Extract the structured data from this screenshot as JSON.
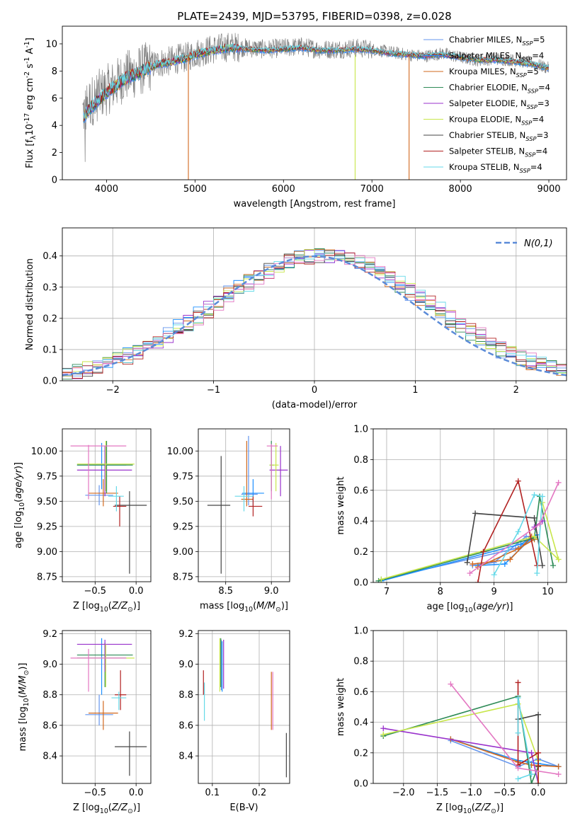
{
  "colors": [
    "#6495ed",
    "#1e90ff",
    "#d2691e",
    "#2e8b57",
    "#9932cc",
    "#c8e64b",
    "#444444",
    "#b22222",
    "#66d9e8"
  ],
  "legend_labels": [
    "Chabrier MILES, N$_{SSP}$=5",
    "Salpeter MILES, N$_{SSP}$=4",
    "Kroupa MILES, N$_{SSP}$=5",
    "Chabrier ELODIE, N$_{SSP}$=4",
    "Salpeter ELODIE, N$_{SSP}$=3",
    "Kroupa ELODIE, N$_{SSP}$=4",
    "Chabrier STELIB, N$_{SSP}$=3",
    "Salpeter STELIB, N$_{SSP}$=4",
    "Kroupa STELIB, N$_{SSP}$=4"
  ],
  "chart_data": [
    {
      "id": "spectrum",
      "type": "line",
      "title": "PLATE=2439, MJD=53795, FIBERID=0398, z=0.028",
      "xlabel": "wavelength [Angstrom, rest frame]",
      "ylabel": "Flux [f$_\\lambda$10$^{-17}$ erg cm$^{-2}$ s$^{-1}$ A$^{-1}$]",
      "xlim": [
        3500,
        9200
      ],
      "ylim": [
        0,
        11.3
      ],
      "xticks": [
        4000,
        5000,
        6000,
        7000,
        8000,
        9000
      ],
      "yticks": [
        0,
        2,
        4,
        6,
        8,
        10
      ],
      "grid": false,
      "legend_position": "top-right",
      "data_trace": {
        "x": [
          3750,
          3800,
          3900,
          4000,
          4100,
          4200,
          4300,
          4400,
          4500,
          4600,
          4700,
          4800,
          4900,
          5000,
          5200,
          5400,
          5600,
          5800,
          6000,
          6200,
          6400,
          6600,
          6800,
          7000,
          7200,
          7400,
          7600,
          7800,
          8000,
          8200,
          8400,
          8600,
          8800,
          9000
        ],
        "y": [
          5.0,
          5.6,
          6.2,
          6.6,
          7.0,
          7.6,
          7.8,
          8.1,
          8.4,
          8.6,
          8.7,
          8.9,
          9.0,
          9.3,
          9.6,
          9.8,
          9.7,
          9.6,
          9.7,
          9.8,
          9.6,
          9.6,
          9.7,
          9.6,
          9.4,
          9.2,
          9.1,
          9.3,
          9.0,
          8.8,
          8.9,
          8.8,
          8.6,
          8.2
        ]
      },
      "model_trace": {
        "x": [
          3750,
          3800,
          3900,
          4000,
          4100,
          4200,
          4300,
          4400,
          4500,
          4600,
          4700,
          4800,
          4900,
          5000,
          5200,
          5400,
          5600,
          5800,
          6000,
          6200,
          6400,
          6600,
          6800,
          7000,
          7200,
          7400,
          7600,
          7800,
          8000,
          8200,
          8400,
          8600,
          8800,
          9000
        ],
        "y": [
          4.6,
          5.2,
          5.8,
          6.4,
          6.9,
          7.4,
          7.7,
          8.0,
          8.3,
          8.5,
          8.6,
          8.8,
          8.9,
          9.2,
          9.5,
          9.7,
          9.6,
          9.5,
          9.6,
          9.7,
          9.5,
          9.5,
          9.6,
          9.5,
          9.3,
          9.2,
          9.1,
          9.2,
          9.0,
          8.8,
          8.8,
          8.7,
          8.5,
          8.2
        ]
      },
      "masked_dips": [
        {
          "x": 4925,
          "series": 2
        },
        {
          "x": 6810,
          "series": 5
        },
        {
          "x": 7420,
          "series": 2
        }
      ]
    },
    {
      "id": "residuals",
      "type": "histogram",
      "xlabel": "(data-model)/error",
      "ylabel": "Normed distribution",
      "xlim": [
        -2.5,
        2.5
      ],
      "ylim": [
        0,
        0.49
      ],
      "xticks": [
        -2,
        -1,
        0,
        1,
        2
      ],
      "yticks": [
        0.0,
        0.1,
        0.2,
        0.3,
        0.4
      ],
      "grid": true,
      "legend_position": "top-right",
      "reference_label": "$\\mathcal{N}(0,1)$",
      "bin_width": 0.1,
      "center_shift": 0.08,
      "sigma_scale": 1.07
    },
    {
      "id": "age-vs-Z",
      "type": "errorbar",
      "xlabel": "Z [log$_{10}$($Z/Z_\\odot$)]",
      "ylabel": "age  [log$_{10}$($age/yr$)]",
      "xlim": [
        -0.9,
        0.18
      ],
      "ylim": [
        8.7,
        10.22
      ],
      "xticks": [
        -0.5,
        0.0
      ],
      "yticks": [
        8.75,
        9.0,
        9.25,
        9.5,
        9.75,
        10.0
      ],
      "grid": true,
      "points": [
        {
          "x": -0.45,
          "xlo": -0.62,
          "xhi": -0.28,
          "y": 9.56,
          "ylo": 9.46,
          "yhi": 9.66
        },
        {
          "x": -0.42,
          "xlo": -0.72,
          "xhi": -0.12,
          "y": 9.86,
          "ylo": 9.62,
          "yhi": 10.08
        },
        {
          "x": -0.4,
          "xlo": -0.58,
          "xhi": -0.22,
          "y": 9.58,
          "ylo": 9.45,
          "yhi": 9.72
        },
        {
          "x": -0.36,
          "xlo": -0.72,
          "xhi": -0.04,
          "y": 9.86,
          "ylo": 9.58,
          "yhi": 10.1
        },
        {
          "x": -0.38,
          "xlo": -0.72,
          "xhi": -0.05,
          "y": 9.81,
          "ylo": 9.55,
          "yhi": 10.05
        },
        {
          "x": -0.37,
          "xlo": -0.72,
          "xhi": -0.02,
          "y": 9.87,
          "ylo": 9.6,
          "yhi": 10.1
        },
        {
          "x": -0.08,
          "xlo": -0.26,
          "xhi": 0.13,
          "y": 9.46,
          "ylo": 8.78,
          "yhi": 9.6
        },
        {
          "x": -0.2,
          "xlo": -0.28,
          "xhi": -0.12,
          "y": 9.45,
          "ylo": 9.25,
          "yhi": 9.55
        },
        {
          "x": -0.24,
          "xlo": -0.34,
          "xhi": -0.15,
          "y": 9.55,
          "ylo": 9.4,
          "yhi": 9.65
        },
        {
          "x": -0.58,
          "xlo": -0.8,
          "xhi": -0.12,
          "y": 10.05,
          "ylo": 9.52,
          "yhi": 10.06
        }
      ]
    },
    {
      "id": "age-vs-mass",
      "type": "errorbar",
      "xlabel": "mass [log$_{10}$($M/M_\\odot$)]",
      "ylabel": "",
      "xlim": [
        8.2,
        9.2
      ],
      "ylim": [
        8.7,
        10.22
      ],
      "xticks": [
        8.5,
        9.0
      ],
      "yticks": [
        8.75,
        9.0,
        9.25,
        9.5,
        9.75,
        10.0
      ],
      "grid": true,
      "points": [
        {
          "x": 8.75,
          "xlo": 8.67,
          "xhi": 8.85,
          "y": 9.57,
          "ylo": 9.46,
          "yhi": 10.15
        },
        {
          "x": 8.8,
          "xlo": 8.68,
          "xhi": 8.92,
          "y": 9.58,
          "ylo": 9.45,
          "yhi": 9.72
        },
        {
          "x": 8.73,
          "xlo": 8.67,
          "xhi": 8.8,
          "y": 9.52,
          "ylo": 9.45,
          "yhi": 10.1
        },
        {
          "x": 9.0,
          "xlo": 8.98,
          "xhi": 9.03,
          "y": 9.86,
          "ylo": 9.6,
          "yhi": 10.1
        },
        {
          "x": 9.1,
          "xlo": 8.98,
          "xhi": 9.18,
          "y": 9.81,
          "ylo": 9.55,
          "yhi": 10.05
        },
        {
          "x": 9.05,
          "xlo": 8.98,
          "xhi": 9.08,
          "y": 9.86,
          "ylo": 9.6,
          "yhi": 10.08
        },
        {
          "x": 8.45,
          "xlo": 8.3,
          "xhi": 8.55,
          "y": 9.46,
          "ylo": 8.78,
          "yhi": 9.95
        },
        {
          "x": 8.8,
          "xlo": 8.75,
          "xhi": 8.9,
          "y": 9.45,
          "ylo": 9.35,
          "yhi": 9.55
        },
        {
          "x": 8.7,
          "xlo": 8.6,
          "xhi": 8.8,
          "y": 9.55,
          "ylo": 9.4,
          "yhi": 9.65
        },
        {
          "x": 9.0,
          "xlo": 8.95,
          "xhi": 9.07,
          "y": 10.05,
          "ylo": 9.52,
          "yhi": 10.07
        }
      ]
    },
    {
      "id": "mw-vs-age",
      "type": "line",
      "xlabel": "age  [log$_{10}$($age/yr$)]",
      "ylabel": "mass weight",
      "xlim": [
        6.75,
        10.35
      ],
      "ylim": [
        0.0,
        1.0
      ],
      "xticks": [
        7,
        8,
        9,
        10
      ],
      "yticks": [
        0.0,
        0.2,
        0.4,
        0.6,
        0.8,
        1.0
      ],
      "grid": true,
      "series": [
        {
          "x": [
            6.9,
            9.4,
            9.75,
            9.6,
            9.0,
            8.6
          ],
          "y": [
            0.02,
            0.22,
            0.29,
            0.3,
            0.13,
            0.11
          ]
        },
        {
          "x": [
            6.9,
            9.5,
            9.8,
            9.7,
            9.2,
            8.7
          ],
          "y": [
            0.01,
            0.25,
            0.31,
            0.29,
            0.12,
            0.11
          ]
        },
        {
          "x": [
            8.6,
            9.3,
            9.7,
            9.75,
            9.45,
            8.7
          ],
          "y": [
            0.12,
            0.15,
            0.3,
            0.28,
            0.22,
            0.1
          ]
        },
        {
          "x": [
            6.85,
            9.75,
            9.85,
            10.1
          ],
          "y": [
            0.01,
            0.29,
            0.56,
            0.11
          ]
        },
        {
          "x": [
            9.75,
            9.9
          ],
          "y": [
            0.36,
            0.4
          ]
        },
        {
          "x": [
            6.9,
            9.75,
            10.2,
            9.9
          ],
          "y": [
            0.02,
            0.3,
            0.15,
            0.52
          ]
        },
        {
          "x": [
            8.5,
            8.65,
            9.75,
            9.9
          ],
          "y": [
            0.13,
            0.45,
            0.42,
            0.11
          ]
        },
        {
          "x": [
            8.7,
            8.8,
            9.45,
            9.8
          ],
          "y": [
            0.0,
            0.2,
            0.66,
            0.11
          ]
        },
        {
          "x": [
            9.0,
            9.45,
            9.75,
            9.9,
            9.8
          ],
          "y": [
            0.05,
            0.33,
            0.57,
            0.56,
            0.06
          ]
        },
        {
          "x": [
            8.55,
            9.85,
            10.2
          ],
          "y": [
            0.06,
            0.38,
            0.65
          ]
        }
      ]
    },
    {
      "id": "mass-vs-Z",
      "type": "errorbar",
      "xlabel": "Z [log$_{10}$($Z/Z_\\odot$)]",
      "ylabel": "mass [log$_{10}$($M/M_\\odot$)]",
      "xlim": [
        -0.9,
        0.18
      ],
      "ylim": [
        8.22,
        9.22
      ],
      "xticks": [
        -0.5,
        0.0
      ],
      "yticks": [
        8.4,
        8.6,
        8.8,
        9.0,
        9.2
      ],
      "grid": true,
      "points": [
        {
          "x": -0.45,
          "xlo": -0.62,
          "xhi": -0.28,
          "y": 8.67,
          "ylo": 8.6,
          "yhi": 8.8
        },
        {
          "x": -0.42,
          "xlo": -0.72,
          "xhi": -0.12,
          "y": 9.04,
          "ylo": 8.8,
          "yhi": 9.17
        },
        {
          "x": -0.4,
          "xlo": -0.58,
          "xhi": -0.22,
          "y": 8.68,
          "ylo": 8.57,
          "yhi": 8.76
        },
        {
          "x": -0.38,
          "xlo": -0.72,
          "xhi": -0.04,
          "y": 9.06,
          "ylo": 8.85,
          "yhi": 9.14
        },
        {
          "x": -0.38,
          "xlo": -0.72,
          "xhi": -0.05,
          "y": 9.13,
          "ylo": 8.95,
          "yhi": 9.16
        },
        {
          "x": -0.37,
          "xlo": -0.72,
          "xhi": -0.02,
          "y": 9.04,
          "ylo": 8.85,
          "yhi": 9.13
        },
        {
          "x": -0.08,
          "xlo": -0.26,
          "xhi": 0.13,
          "y": 8.46,
          "ylo": 8.27,
          "yhi": 8.56
        },
        {
          "x": -0.19,
          "xlo": -0.26,
          "xhi": -0.12,
          "y": 8.8,
          "ylo": 8.7,
          "yhi": 8.96
        },
        {
          "x": -0.21,
          "xlo": -0.3,
          "xhi": -0.12,
          "y": 8.78,
          "ylo": 8.7,
          "yhi": 8.82
        },
        {
          "x": -0.58,
          "xlo": -0.8,
          "xhi": -0.12,
          "y": 9.04,
          "ylo": 8.82,
          "yhi": 9.1
        }
      ]
    },
    {
      "id": "mass-vs-ebv",
      "type": "errorbar",
      "xlabel": "E(B-V)",
      "ylabel": "",
      "xlim": [
        0.07,
        0.265
      ],
      "ylim": [
        8.22,
        9.22
      ],
      "xticks": [
        0.1,
        0.2
      ],
      "yticks": [
        8.4,
        8.6,
        8.8,
        9.0,
        9.2
      ],
      "grid": true,
      "points": [
        {
          "x": 0.119,
          "xlo": 0.119,
          "xhi": 0.119,
          "y": 9.0,
          "ylo": 8.83,
          "yhi": 9.16
        },
        {
          "x": 0.121,
          "xlo": 0.121,
          "xhi": 0.121,
          "y": 9.0,
          "ylo": 8.82,
          "yhi": 9.15
        },
        {
          "x": 0.226,
          "xlo": 0.226,
          "xhi": 0.226,
          "y": 8.78,
          "ylo": 8.57,
          "yhi": 8.95
        },
        {
          "x": 0.118,
          "xlo": 0.118,
          "xhi": 0.118,
          "y": 9.0,
          "ylo": 8.85,
          "yhi": 9.17
        },
        {
          "x": 0.124,
          "xlo": 0.124,
          "xhi": 0.124,
          "y": 9.0,
          "ylo": 8.84,
          "yhi": 9.16
        },
        {
          "x": 0.116,
          "xlo": 0.116,
          "xhi": 0.116,
          "y": 9.0,
          "ylo": 8.82,
          "yhi": 9.17
        },
        {
          "x": 0.258,
          "xlo": 0.258,
          "xhi": 0.258,
          "y": 8.4,
          "ylo": 8.26,
          "yhi": 8.55
        },
        {
          "x": 0.081,
          "xlo": 0.081,
          "xhi": 0.081,
          "y": 8.88,
          "ylo": 8.8,
          "yhi": 8.96
        },
        {
          "x": 0.083,
          "xlo": 0.083,
          "xhi": 0.083,
          "y": 8.75,
          "ylo": 8.63,
          "yhi": 8.88
        },
        {
          "x": 0.229,
          "xlo": 0.229,
          "xhi": 0.229,
          "y": 8.9,
          "ylo": 8.57,
          "yhi": 8.95
        }
      ]
    },
    {
      "id": "mw-vs-Z",
      "type": "line",
      "xlabel": "Z [log$_{10}$($Z/Z_\\odot$)]",
      "ylabel": "mass weight",
      "xlim": [
        -2.45,
        0.42
      ],
      "ylim": [
        0.0,
        1.0
      ],
      "xticks": [
        -2.0,
        -1.5,
        -1.0,
        -0.5,
        0.0
      ],
      "yticks": [
        0.0,
        0.2,
        0.4,
        0.6,
        0.8,
        1.0
      ],
      "grid": true,
      "series": [
        {
          "x": [
            -1.3,
            -0.3,
            0.0,
            0.3
          ],
          "y": [
            0.28,
            0.11,
            0.16,
            0.11
          ]
        },
        {
          "x": [
            -1.3,
            -0.3,
            0.0,
            0.3
          ],
          "y": [
            0.29,
            0.15,
            0.13,
            0.11
          ]
        },
        {
          "x": [
            -1.3,
            -0.3,
            -0.1,
            0.3
          ],
          "y": [
            0.29,
            0.14,
            0.12,
            0.11
          ]
        },
        {
          "x": [
            -2.3,
            -0.3,
            -0.1,
            0.0
          ],
          "y": [
            0.31,
            0.57,
            0.0,
            0.11
          ]
        },
        {
          "x": [
            -2.3,
            -0.1,
            0.0
          ],
          "y": [
            0.36,
            0.2,
            0.0
          ]
        },
        {
          "x": [
            -2.3,
            -0.3,
            0.0,
            0.0
          ],
          "y": [
            0.32,
            0.52,
            0.15,
            0.0
          ]
        },
        {
          "x": [
            -0.3,
            0.0,
            0.0
          ],
          "y": [
            0.42,
            0.45,
            0.11
          ]
        },
        {
          "x": [
            -0.3,
            -0.3,
            0.0,
            0.0
          ],
          "y": [
            0.66,
            0.12,
            0.2,
            0.0
          ]
        },
        {
          "x": [
            -0.3,
            -0.1,
            -0.3,
            -0.3
          ],
          "y": [
            0.03,
            0.06,
            0.56,
            0.33
          ]
        },
        {
          "x": [
            -1.3,
            -0.3,
            0.3
          ],
          "y": [
            0.65,
            0.1,
            0.06
          ]
        }
      ]
    }
  ]
}
